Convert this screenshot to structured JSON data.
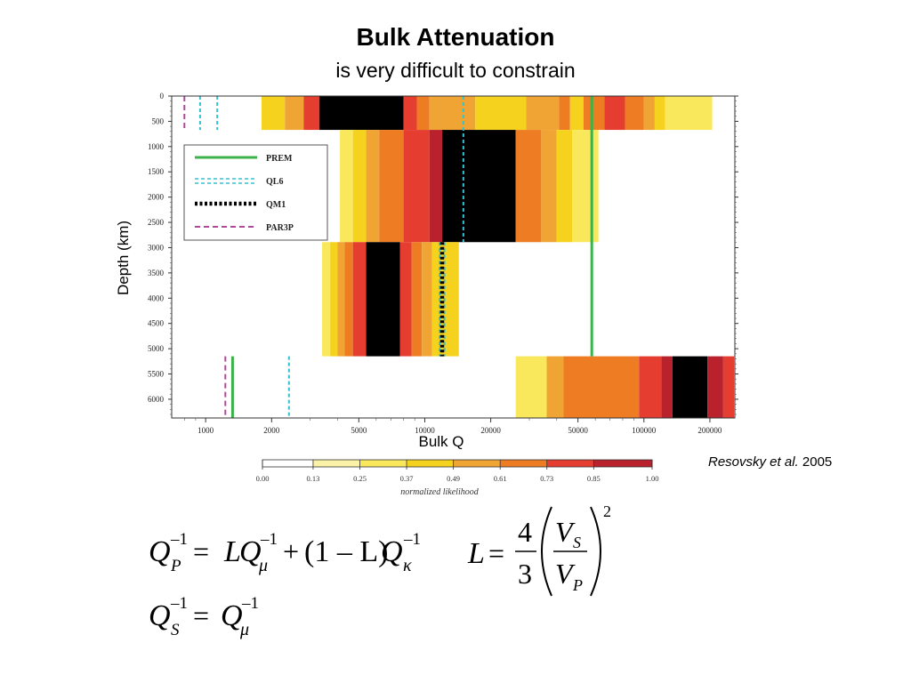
{
  "title": "Bulk Attenuation",
  "subtitle": "is very difficult to constrain",
  "citation": {
    "authors": "Resovsky et al.",
    "year": "2005"
  },
  "chart_data": {
    "type": "heatmap",
    "xlabel": "Bulk Q",
    "ylabel": "Depth (km)",
    "xscale": "log",
    "xlim": [
      700,
      260000
    ],
    "ylim": [
      0,
      6371
    ],
    "x_ticks": [
      1000,
      2000,
      5000,
      10000,
      20000,
      50000,
      100000,
      200000
    ],
    "y_ticks": [
      0,
      500,
      1000,
      1500,
      2000,
      2500,
      3000,
      3500,
      4000,
      4500,
      5000,
      5500,
      6000
    ],
    "legend": {
      "position": "top-left",
      "entries": [
        "PREM",
        "QL6",
        "QM1",
        "PAR3P"
      ]
    },
    "colors": {
      "PREM": "#3bb34a",
      "QL6": "#35c0d0",
      "QM1": "#000000",
      "PAR3P": "#b0489a"
    },
    "layers": [
      {
        "depth": [
          0,
          670
        ],
        "bands": [
          [
            1800,
            0.37
          ],
          [
            2300,
            0.49
          ],
          [
            2800,
            0.73
          ],
          [
            3300,
            1.0
          ],
          [
            8000,
            0.73
          ],
          [
            9200,
            0.61
          ],
          [
            10500,
            0.49
          ],
          [
            17000,
            0.37
          ],
          [
            29000,
            0.49
          ],
          [
            41000,
            0.61
          ],
          [
            46000,
            0.37
          ],
          [
            53000,
            0.61
          ],
          [
            66000,
            0.73
          ],
          [
            82000,
            0.61
          ],
          [
            100000,
            0.49
          ],
          [
            112000,
            0.37
          ],
          [
            125000,
            0.25
          ],
          [
            205000,
            0
          ]
        ]
      },
      {
        "depth": [
          670,
          2891
        ],
        "bands": [
          [
            4100,
            0.25
          ],
          [
            4700,
            0.37
          ],
          [
            5400,
            0.49
          ],
          [
            6200,
            0.61
          ],
          [
            8000,
            0.73
          ],
          [
            10500,
            0.85
          ],
          [
            12000,
            1.0
          ],
          [
            26000,
            0.61
          ],
          [
            34000,
            0.49
          ],
          [
            40000,
            0.37
          ],
          [
            47000,
            0.25
          ],
          [
            62000,
            0
          ]
        ]
      },
      {
        "depth": [
          2891,
          5150
        ],
        "bands": [
          [
            3400,
            0.25
          ],
          [
            3700,
            0.37
          ],
          [
            4000,
            0.49
          ],
          [
            4300,
            0.61
          ],
          [
            4700,
            0.73
          ],
          [
            5400,
            1.0
          ],
          [
            7700,
            0.73
          ],
          [
            8700,
            0.61
          ],
          [
            9700,
            0.49
          ],
          [
            10800,
            0.37
          ],
          [
            14300,
            0
          ]
        ]
      },
      {
        "depth": [
          5150,
          6371
        ],
        "bands": [
          [
            26000,
            0.25
          ],
          [
            36000,
            0.49
          ],
          [
            43000,
            0.61
          ],
          [
            95000,
            0.73
          ],
          [
            120000,
            0.85
          ],
          [
            135000,
            1.0
          ],
          [
            195000,
            0.85
          ],
          [
            230000,
            0.73
          ],
          [
            258000,
            0
          ]
        ]
      }
    ],
    "models": {
      "PREM": [
        {
          "depth": [
            0,
            5150
          ],
          "q": 57823
        },
        {
          "depth": [
            5150,
            6371
          ],
          "q": 1327
        }
      ],
      "QL6": [
        {
          "depth": [
            0,
            670
          ],
          "q": 943
        },
        {
          "depth": [
            0,
            670
          ],
          "q": 1130
        },
        {
          "depth": [
            0,
            2891
          ],
          "q": 15000
        },
        {
          "depth": [
            2891,
            5150
          ],
          "q": 11700
        },
        {
          "depth": [
            2891,
            5150
          ],
          "q": 12300
        },
        {
          "depth": [
            5150,
            6371
          ],
          "q": 2400
        }
      ],
      "QM1": [
        {
          "depth": [
            0,
            670
          ],
          "q": 4950
        },
        {
          "depth": [
            2891,
            5150
          ],
          "q": 12000
        }
      ],
      "PAR3P": [
        {
          "depth": [
            0,
            670
          ],
          "q": 800
        },
        {
          "depth": [
            5150,
            6371
          ],
          "q": 1230
        }
      ]
    },
    "colorbar": {
      "label": "normalized likelihood",
      "ticks": [
        "0.00",
        "0.13",
        "0.25",
        "0.37",
        "0.49",
        "0.61",
        "0.73",
        "0.85",
        "1.00"
      ],
      "segment_colors": [
        "#ffffff",
        "#fbf2a7",
        "#f9e85c",
        "#f5d21e",
        "#f0a434",
        "#ed7c22",
        "#e53d2f",
        "#b9212c",
        "#000000"
      ]
    }
  },
  "equations": {
    "qp_q": "Q",
    "qp_sub": "P",
    "exp": "–1",
    "eq": "=",
    "L": "L",
    "q2": "Q",
    "mu": "μ",
    "plus": "+",
    "paren": "(1 – L)",
    "kappa": "κ",
    "qs_sub": "S",
    "four": "4",
    "three": "3",
    "v": "V",
    "vs_sub": "S",
    "vp_sub": "P",
    "two": "2"
  }
}
